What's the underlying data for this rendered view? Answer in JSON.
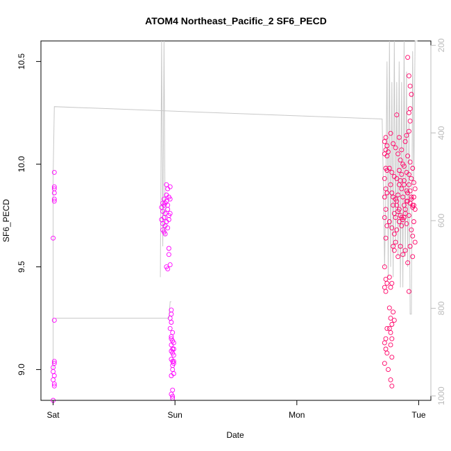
{
  "chart_data": {
    "type": "scatter",
    "title": "ATOM4 Northeast_Pacific_2 SF6_PECD",
    "xlabel": "Date",
    "ylabel": "SF6_PECD",
    "x_ticks": [
      "Sat",
      "Sun",
      "Mon",
      "Tue"
    ],
    "x_tick_days": [
      0,
      1,
      2,
      3
    ],
    "xlim_days": [
      -0.1,
      3.1
    ],
    "ylim": [
      8.85,
      10.6
    ],
    "y_ticks": [
      "9.0",
      "9.5",
      "10.0",
      "10.5"
    ],
    "y_tick_values": [
      9.0,
      9.5,
      10.0,
      10.5
    ],
    "y2_ticks": [
      "200",
      "400",
      "600",
      "800",
      "1000"
    ],
    "y2_tick_values": [
      200,
      400,
      600,
      800,
      1000
    ],
    "y2_reversed": true,
    "y2lim": [
      1010,
      190
    ],
    "grid": false,
    "colors": {
      "early": "#ff00ff",
      "late": "#ff0066",
      "trace": "#c8c8c8",
      "axis": "#000000",
      "y2": "#bbbbbb"
    },
    "series": [
      {
        "values": [
          [
            0.01,
            9.96
          ],
          [
            0.01,
            9.89
          ],
          [
            0.01,
            9.88
          ],
          [
            0.01,
            9.86
          ],
          [
            0.01,
            9.83
          ],
          [
            0.01,
            9.82
          ],
          [
            0.0,
            9.64
          ],
          [
            0.01,
            9.24
          ],
          [
            0.01,
            9.04
          ],
          [
            0.01,
            9.03
          ],
          [
            0.0,
            9.01
          ],
          [
            0.0,
            8.99
          ],
          [
            0.01,
            8.97
          ],
          [
            0.0,
            8.95
          ],
          [
            0.01,
            8.93
          ],
          [
            0.01,
            8.92
          ],
          [
            0.0,
            8.84
          ],
          [
            0.89,
            9.79
          ],
          [
            0.9,
            9.81
          ],
          [
            0.9,
            9.77
          ],
          [
            0.91,
            9.8
          ],
          [
            0.92,
            9.76
          ],
          [
            0.89,
            9.73
          ],
          [
            0.91,
            9.74
          ],
          [
            0.93,
            9.82
          ],
          [
            0.94,
            9.78
          ],
          [
            0.9,
            9.71
          ],
          [
            0.92,
            9.7
          ],
          [
            0.93,
            9.72
          ],
          [
            0.95,
            9.75
          ],
          [
            0.9,
            9.68
          ],
          [
            0.91,
            9.67
          ],
          [
            0.94,
            9.8
          ],
          [
            0.95,
            9.84
          ],
          [
            0.96,
            9.83
          ],
          [
            0.93,
            9.9
          ],
          [
            0.94,
            9.88
          ],
          [
            0.96,
            9.89
          ],
          [
            0.92,
            9.66
          ],
          [
            0.93,
            9.85
          ],
          [
            0.95,
            9.73
          ],
          [
            0.96,
            9.76
          ],
          [
            0.94,
            9.69
          ],
          [
            0.95,
            9.59
          ],
          [
            0.95,
            9.56
          ],
          [
            0.93,
            9.5
          ],
          [
            0.94,
            9.49
          ],
          [
            0.96,
            9.51
          ],
          [
            0.92,
            9.81
          ],
          [
            0.91,
            9.83
          ],
          [
            0.97,
            9.29
          ],
          [
            0.97,
            9.27
          ],
          [
            0.96,
            9.25
          ],
          [
            0.97,
            9.23
          ],
          [
            0.96,
            9.2
          ],
          [
            0.97,
            9.16
          ],
          [
            0.98,
            9.14
          ],
          [
            0.97,
            9.12
          ],
          [
            0.98,
            9.1
          ],
          [
            0.99,
            9.13
          ],
          [
            0.98,
            9.08
          ],
          [
            0.99,
            9.07
          ],
          [
            0.97,
            9.05
          ],
          [
            0.98,
            9.04
          ],
          [
            0.99,
            9.03
          ],
          [
            0.98,
            9.0
          ],
          [
            0.99,
            8.98
          ],
          [
            0.97,
            8.97
          ],
          [
            0.98,
            8.9
          ],
          [
            0.97,
            8.88
          ],
          [
            0.98,
            8.87
          ],
          [
            0.98,
            8.86
          ],
          [
            0.99,
            9.04
          ],
          [
            0.97,
            9.09
          ],
          [
            0.98,
            9.02
          ],
          [
            0.99,
            9.1
          ],
          [
            0.97,
            9.15
          ],
          [
            0.98,
            9.18
          ]
        ]
      },
      {
        "values": [
          [
            2.72,
            10.11
          ],
          [
            2.73,
            10.13
          ],
          [
            2.74,
            10.09
          ],
          [
            2.72,
            10.05
          ],
          [
            2.73,
            10.07
          ],
          [
            2.74,
            10.04
          ],
          [
            2.73,
            9.98
          ],
          [
            2.74,
            9.97
          ],
          [
            2.72,
            9.93
          ],
          [
            2.73,
            9.88
          ],
          [
            2.74,
            9.86
          ],
          [
            2.72,
            9.84
          ],
          [
            2.73,
            9.78
          ],
          [
            2.74,
            9.7
          ],
          [
            2.72,
            9.74
          ],
          [
            2.73,
            9.64
          ],
          [
            2.72,
            9.5
          ],
          [
            2.73,
            9.44
          ],
          [
            2.74,
            9.42
          ],
          [
            2.72,
            9.4
          ],
          [
            2.73,
            9.38
          ],
          [
            2.74,
            9.2
          ],
          [
            2.73,
            9.15
          ],
          [
            2.72,
            9.13
          ],
          [
            2.73,
            9.1
          ],
          [
            2.74,
            9.08
          ],
          [
            2.72,
            9.03
          ],
          [
            2.75,
            9.0
          ],
          [
            2.75,
            10.06
          ],
          [
            2.76,
            9.98
          ],
          [
            2.77,
            9.9
          ],
          [
            2.78,
            9.86
          ],
          [
            2.79,
            9.8
          ],
          [
            2.8,
            9.76
          ],
          [
            2.81,
            9.74
          ],
          [
            2.82,
            9.82
          ],
          [
            2.83,
            9.85
          ],
          [
            2.84,
            9.9
          ],
          [
            2.85,
            9.92
          ],
          [
            2.86,
            9.88
          ],
          [
            2.87,
            9.84
          ],
          [
            2.88,
            9.8
          ],
          [
            2.89,
            9.78
          ],
          [
            2.9,
            9.82
          ],
          [
            2.91,
            9.86
          ],
          [
            2.92,
            9.9
          ],
          [
            2.93,
            9.87
          ],
          [
            2.94,
            9.83
          ],
          [
            2.95,
            9.8
          ],
          [
            2.96,
            9.84
          ],
          [
            2.97,
            9.88
          ],
          [
            2.77,
            10.15
          ],
          [
            2.79,
            10.1
          ],
          [
            2.81,
            10.08
          ],
          [
            2.83,
            10.05
          ],
          [
            2.85,
            10.02
          ],
          [
            2.87,
            10.0
          ],
          [
            2.89,
            10.11
          ],
          [
            2.91,
            10.04
          ],
          [
            2.93,
            10.01
          ],
          [
            2.95,
            9.98
          ],
          [
            2.78,
            9.96
          ],
          [
            2.8,
            9.94
          ],
          [
            2.82,
            9.93
          ],
          [
            2.84,
            9.97
          ],
          [
            2.86,
            9.95
          ],
          [
            2.88,
            9.92
          ],
          [
            2.9,
            9.96
          ],
          [
            2.92,
            9.95
          ],
          [
            2.94,
            9.93
          ],
          [
            2.96,
            9.91
          ],
          [
            2.76,
            9.72
          ],
          [
            2.78,
            9.69
          ],
          [
            2.8,
            9.66
          ],
          [
            2.82,
            9.68
          ],
          [
            2.84,
            9.72
          ],
          [
            2.86,
            9.7
          ],
          [
            2.88,
            9.74
          ],
          [
            2.9,
            9.71
          ],
          [
            2.92,
            9.75
          ],
          [
            2.94,
            9.68
          ],
          [
            2.96,
            9.72
          ],
          [
            2.79,
            9.6
          ],
          [
            2.81,
            9.62
          ],
          [
            2.85,
            9.6
          ],
          [
            2.89,
            9.58
          ],
          [
            2.93,
            9.6
          ],
          [
            2.95,
            9.65
          ],
          [
            2.97,
            9.62
          ],
          [
            2.8,
            9.58
          ],
          [
            2.83,
            9.55
          ],
          [
            2.87,
            9.56
          ],
          [
            2.91,
            9.52
          ],
          [
            2.95,
            9.55
          ],
          [
            2.76,
            9.45
          ],
          [
            2.78,
            9.42
          ],
          [
            2.77,
            9.4
          ],
          [
            2.92,
            9.38
          ],
          [
            2.76,
            9.3
          ],
          [
            2.77,
            9.25
          ],
          [
            2.78,
            9.22
          ],
          [
            2.76,
            9.2
          ],
          [
            2.77,
            9.18
          ],
          [
            2.78,
            9.15
          ],
          [
            2.77,
            9.12
          ],
          [
            2.78,
            9.06
          ],
          [
            2.77,
            8.95
          ],
          [
            2.78,
            8.92
          ],
          [
            2.79,
            9.28
          ],
          [
            2.8,
            9.24
          ],
          [
            2.91,
            10.52
          ],
          [
            2.93,
            10.38
          ],
          [
            2.92,
            10.43
          ],
          [
            2.94,
            10.34
          ],
          [
            2.93,
            10.27
          ],
          [
            2.92,
            10.25
          ],
          [
            2.93,
            10.21
          ],
          [
            2.92,
            10.16
          ],
          [
            2.82,
            10.24
          ],
          [
            2.84,
            10.13
          ],
          [
            2.86,
            10.07
          ],
          [
            2.88,
            9.99
          ],
          [
            2.9,
            10.14
          ],
          [
            2.96,
            9.8
          ],
          [
            2.97,
            9.78
          ],
          [
            2.82,
            9.8
          ],
          [
            2.84,
            9.78
          ],
          [
            2.86,
            9.74
          ],
          [
            2.88,
            9.9
          ],
          [
            2.9,
            9.87
          ],
          [
            2.94,
            9.84
          ],
          [
            2.95,
            9.79
          ],
          [
            2.83,
            9.77
          ],
          [
            2.85,
            9.75
          ],
          [
            2.87,
            9.73
          ],
          [
            2.89,
            9.76
          ],
          [
            2.91,
            9.82
          ],
          [
            2.93,
            9.81
          ],
          [
            2.81,
            9.83
          ],
          [
            2.79,
            9.84
          ]
        ]
      }
    ],
    "trace": [
      [
        0.0,
        9.0
      ],
      [
        0.0,
        9.95
      ],
      [
        0.01,
        10.28
      ],
      [
        2.7,
        10.22
      ],
      [
        2.71,
        9.9
      ],
      [
        2.72,
        9.5
      ],
      [
        2.73,
        9.85
      ],
      [
        2.74,
        10.5
      ],
      [
        2.75,
        9.45
      ],
      [
        2.76,
        10.6
      ],
      [
        2.77,
        9.5
      ],
      [
        2.78,
        10.4
      ],
      [
        2.79,
        9.45
      ],
      [
        2.8,
        10.6
      ],
      [
        2.81,
        9.6
      ],
      [
        2.82,
        10.4
      ],
      [
        2.83,
        9.55
      ],
      [
        2.84,
        10.5
      ],
      [
        2.85,
        9.4
      ],
      [
        2.86,
        10.4
      ],
      [
        2.87,
        9.4
      ],
      [
        2.88,
        10.6
      ],
      [
        2.89,
        9.55
      ],
      [
        2.9,
        10.45
      ],
      [
        2.91,
        9.5
      ],
      [
        2.92,
        10.2
      ],
      [
        2.93,
        9.27
      ],
      [
        2.94,
        9.27
      ],
      [
        2.95,
        10.55
      ],
      [
        2.96,
        9.9
      ],
      [
        2.97,
        10.6
      ],
      [
        2.98,
        10.6
      ],
      [
        2.99,
        10.6
      ]
    ],
    "trace_lower": [
      [
        0.02,
        9.25
      ],
      [
        0.95,
        9.25
      ],
      [
        0.96,
        9.33
      ],
      [
        0.97,
        9.33
      ]
    ],
    "trace_spike": [
      [
        0.88,
        9.45
      ],
      [
        0.89,
        10.6
      ],
      [
        0.9,
        9.6
      ],
      [
        0.91,
        10.6
      ],
      [
        0.92,
        9.65
      ]
    ]
  }
}
